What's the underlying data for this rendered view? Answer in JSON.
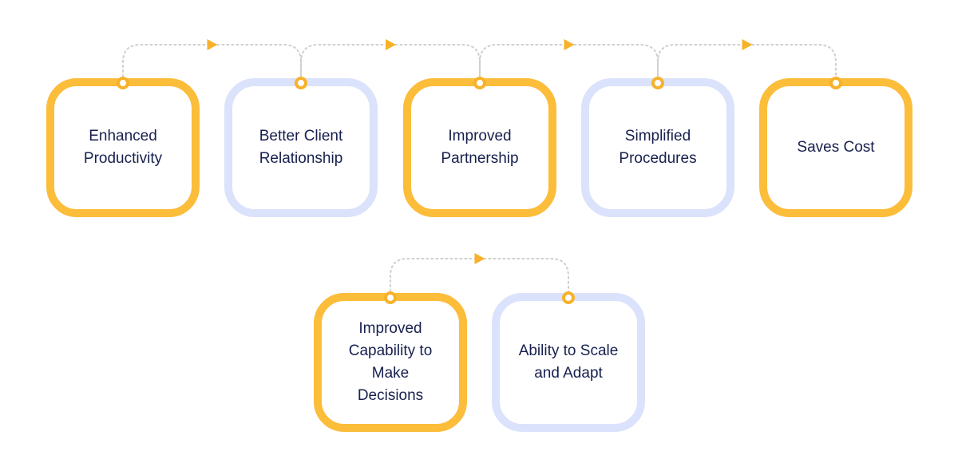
{
  "steps": [
    {
      "label": "Enhanced\nProductivity",
      "color": "#fbbd3a"
    },
    {
      "label": "Better Client\nRelationship",
      "color": "#dbe2fb"
    },
    {
      "label": "Improved\nPartnership",
      "color": "#fbbd3a"
    },
    {
      "label": "Simplified\nProcedures",
      "color": "#dbe2fb"
    },
    {
      "label": "Saves Cost",
      "color": "#fbbd3a"
    },
    {
      "label": "Improved\nCapability to\nMake\nDecisions",
      "color": "#fbbd3a"
    },
    {
      "label": "Ability to Scale\nand Adapt",
      "color": "#dbe2fb"
    }
  ],
  "colors": {
    "accent": "#fbbd3a",
    "node": "#f7b22a",
    "secondary": "#dbe2fb",
    "text": "#17204e",
    "connector": "#cfcfcf"
  },
  "icons": {
    "node": "circle-node-icon",
    "arrow": "arrowhead-icon"
  }
}
